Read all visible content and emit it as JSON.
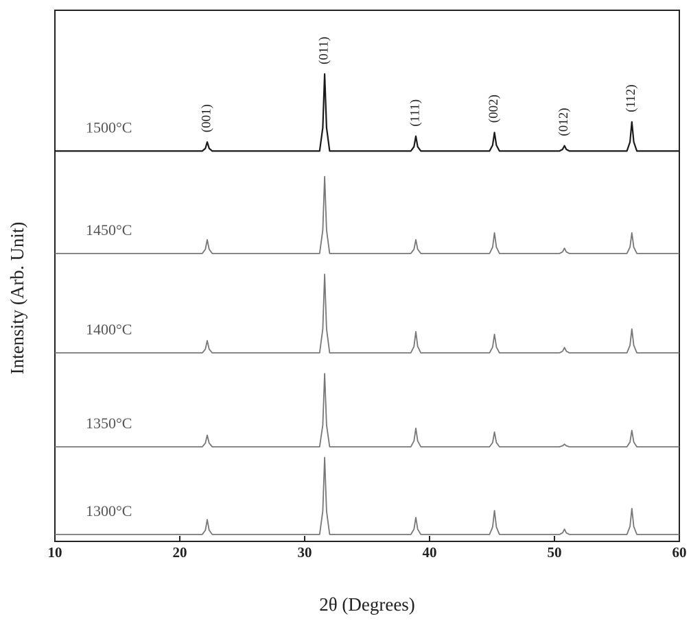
{
  "chart_data": {
    "type": "line",
    "xlabel": "2θ (Degrees)",
    "ylabel": "Intensity (Arb. Unit)",
    "xlim": [
      10,
      60
    ],
    "xticks": [
      10,
      20,
      30,
      40,
      50,
      60
    ],
    "ylim": [
      0,
      100
    ],
    "x": [
      10,
      21.8,
      22.05,
      22.2,
      22.35,
      22.6,
      31.2,
      31.45,
      31.6,
      31.75,
      32.0,
      38.5,
      38.75,
      38.9,
      39.05,
      39.3,
      44.8,
      45.05,
      45.2,
      45.35,
      45.6,
      50.4,
      50.65,
      50.8,
      50.95,
      51.2,
      55.8,
      56.05,
      56.2,
      56.35,
      56.6,
      60
    ],
    "series": [
      {
        "name": "1500°C",
        "color": "#1a1a1a",
        "values": [
          73.5,
          73.5,
          74.0,
          75.2,
          74.0,
          73.5,
          73.5,
          77.9,
          88.0,
          77.9,
          73.5,
          73.5,
          74.3,
          76.3,
          74.3,
          73.5,
          73.5,
          74.6,
          77.0,
          74.6,
          73.5,
          73.5,
          73.8,
          74.5,
          73.8,
          73.5,
          73.5,
          75.2,
          79.0,
          75.2,
          73.5,
          73.5
        ]
      },
      {
        "name": "1450°C",
        "color": "#777777",
        "values": [
          54.2,
          54.2,
          55.0,
          56.8,
          55.0,
          54.2,
          54.2,
          58.6,
          68.7,
          58.6,
          54.2,
          54.2,
          55.0,
          56.8,
          55.0,
          54.2,
          54.2,
          55.4,
          58.1,
          55.4,
          54.2,
          54.2,
          54.5,
          55.2,
          54.5,
          54.2,
          54.2,
          55.4,
          58.1,
          55.4,
          54.2,
          54.2
        ]
      },
      {
        "name": "1400°C",
        "color": "#777777",
        "values": [
          35.5,
          35.5,
          36.2,
          37.8,
          36.2,
          35.5,
          35.5,
          40.0,
          50.3,
          40.0,
          35.5,
          35.5,
          36.7,
          39.5,
          36.7,
          35.5,
          35.5,
          36.6,
          39.0,
          36.6,
          35.5,
          35.5,
          35.8,
          36.5,
          35.8,
          35.5,
          35.5,
          36.9,
          40.0,
          36.9,
          35.5,
          35.5
        ]
      },
      {
        "name": "1350°C",
        "color": "#777777",
        "values": [
          17.8,
          17.8,
          18.5,
          20.0,
          18.5,
          17.8,
          17.8,
          21.9,
          31.6,
          21.9,
          17.8,
          17.8,
          18.9,
          21.3,
          18.9,
          17.8,
          17.8,
          18.6,
          20.6,
          18.6,
          17.8,
          17.8,
          18.0,
          18.3,
          18.0,
          17.8,
          17.8,
          18.7,
          20.9,
          18.7,
          17.8,
          17.8
        ]
      },
      {
        "name": "1300°C",
        "color": "#777777",
        "values": [
          1.3,
          1.3,
          2.1,
          4.1,
          2.1,
          1.3,
          1.3,
          5.7,
          15.8,
          5.7,
          1.3,
          1.3,
          2.3,
          4.5,
          2.3,
          1.3,
          1.3,
          2.7,
          5.8,
          2.7,
          1.3,
          1.3,
          1.6,
          2.3,
          1.6,
          1.3,
          1.3,
          2.8,
          6.2,
          2.8,
          1.3,
          1.3
        ]
      }
    ],
    "annotations": [
      {
        "text": "(001)",
        "x": 22.2
      },
      {
        "text": "(011)",
        "x": 31.6
      },
      {
        "text": "(111)",
        "x": 38.9
      },
      {
        "text": "(002)",
        "x": 45.2
      },
      {
        "text": "(012)",
        "x": 50.8
      },
      {
        "text": "(112)",
        "x": 56.2
      }
    ]
  }
}
